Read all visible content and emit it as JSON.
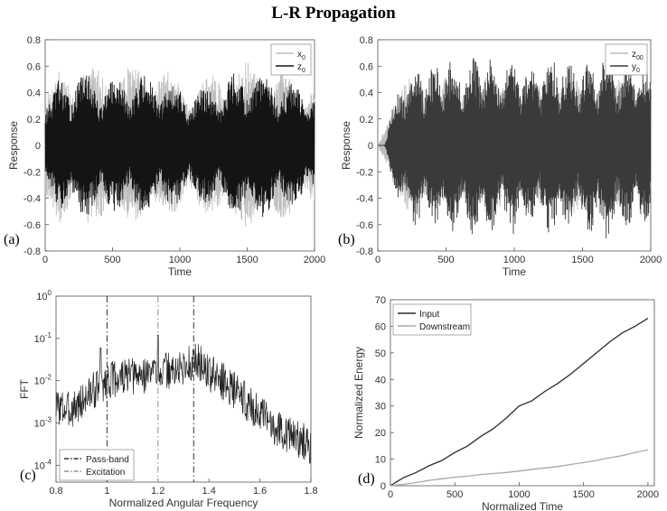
{
  "figure": {
    "title": "L-R Propagation",
    "panel_labels": [
      "(a)",
      "(b)",
      "(c)",
      "(d)"
    ]
  },
  "chart_data": [
    {
      "type": "line",
      "panel": "(a)",
      "xlabel": "Time",
      "ylabel": "Response",
      "xlim": [
        0,
        2000
      ],
      "ylim": [
        -0.8,
        0.8
      ],
      "xticks": [
        0,
        500,
        1000,
        1500,
        2000
      ],
      "yticks": [
        -0.8,
        -0.6,
        -0.4,
        -0.2,
        0,
        0.2,
        0.4,
        0.6,
        0.8
      ],
      "legend_position": "top-right",
      "series": [
        {
          "name": "x0",
          "legend_label": "x",
          "legend_sub": "0",
          "color": "#bdbdbd",
          "envelope_x": [
            50,
            100,
            200,
            300,
            400,
            500,
            600,
            700,
            800,
            900,
            1000,
            1100,
            1200,
            1300,
            1400,
            1500,
            1600,
            1700,
            1800,
            1900,
            2000
          ],
          "envelope_y": [
            0.45,
            0.6,
            0.62,
            0.62,
            0.6,
            0.58,
            0.6,
            0.62,
            0.6,
            0.58,
            0.52,
            0.5,
            0.52,
            0.58,
            0.62,
            0.63,
            0.62,
            0.58,
            0.55,
            0.52,
            0.5
          ]
        },
        {
          "name": "z0",
          "legend_label": "z",
          "legend_sub": "0",
          "color": "#141414",
          "envelope_x": [
            50,
            100,
            200,
            300,
            400,
            500,
            600,
            700,
            800,
            900,
            1000,
            1100,
            1200,
            1300,
            1400,
            1500,
            1600,
            1700,
            1800,
            1900,
            2000
          ],
          "envelope_y": [
            0.35,
            0.52,
            0.55,
            0.55,
            0.52,
            0.5,
            0.52,
            0.55,
            0.52,
            0.5,
            0.45,
            0.42,
            0.45,
            0.5,
            0.55,
            0.56,
            0.55,
            0.52,
            0.48,
            0.45,
            0.42
          ]
        }
      ]
    },
    {
      "type": "line",
      "panel": "(b)",
      "xlabel": "Time",
      "ylabel": "Response",
      "xlim": [
        0,
        2000
      ],
      "ylim": [
        -0.8,
        0.8
      ],
      "xticks": [
        0,
        500,
        1000,
        1500,
        2000
      ],
      "yticks": [
        -0.8,
        -0.6,
        -0.4,
        -0.2,
        0,
        0.2,
        0.4,
        0.6,
        0.8
      ],
      "legend_position": "top-right",
      "series": [
        {
          "name": "z00",
          "legend_label": "z",
          "legend_sub": "00",
          "color": "#bdbdbd",
          "envelope_x": [
            0,
            50,
            100,
            200,
            300,
            400,
            500,
            600,
            700,
            800,
            900,
            1000,
            1100,
            1200,
            1300,
            1400,
            1500,
            1600,
            1700,
            1800,
            1900,
            2000
          ],
          "envelope_y": [
            0.0,
            0.15,
            0.45,
            0.5,
            0.52,
            0.5,
            0.55,
            0.5,
            0.52,
            0.55,
            0.5,
            0.52,
            0.48,
            0.52,
            0.55,
            0.52,
            0.5,
            0.55,
            0.52,
            0.5,
            0.52,
            0.5
          ]
        },
        {
          "name": "y0",
          "legend_label": "y",
          "legend_sub": "0",
          "color": "#3a3a3a",
          "envelope_x": [
            0,
            50,
            100,
            200,
            300,
            400,
            500,
            600,
            700,
            800,
            900,
            1000,
            1100,
            1200,
            1300,
            1400,
            1500,
            1600,
            1700,
            1800,
            1900,
            2000
          ],
          "envelope_y": [
            0.0,
            0.0,
            0.3,
            0.55,
            0.65,
            0.6,
            0.7,
            0.62,
            0.68,
            0.72,
            0.6,
            0.7,
            0.58,
            0.65,
            0.72,
            0.62,
            0.66,
            0.72,
            0.75,
            0.6,
            0.65,
            0.55
          ]
        }
      ]
    },
    {
      "type": "line",
      "panel": "(c)",
      "xlabel": "Normalized Angular Frequency",
      "ylabel": "FFT",
      "yscale": "log",
      "xlim": [
        0.8,
        1.8
      ],
      "ylim": [
        4e-05,
        1
      ],
      "xticks": [
        0.8,
        1,
        1.2,
        1.4,
        1.6,
        1.8
      ],
      "ytick_labels": [
        {
          "value": 1,
          "base": "10",
          "exp": "0"
        },
        {
          "value": 0.1,
          "base": "10",
          "exp": "-1"
        },
        {
          "value": 0.01,
          "base": "10",
          "exp": "-2"
        },
        {
          "value": 0.001,
          "base": "10",
          "exp": "-3"
        },
        {
          "value": 0.0001,
          "base": "10",
          "exp": "-4"
        }
      ],
      "legend_position": "bottom-left",
      "series": [
        {
          "name": "spectrum",
          "color": "#202020",
          "x": [
            0.8,
            0.85,
            0.9,
            0.95,
            1.0,
            1.05,
            1.1,
            1.15,
            1.2,
            1.25,
            1.3,
            1.35,
            1.4,
            1.45,
            1.5,
            1.55,
            1.6,
            1.65,
            1.7,
            1.75,
            1.8
          ],
          "y": [
            0.0025,
            0.002,
            0.003,
            0.006,
            0.01,
            0.012,
            0.012,
            0.014,
            0.018,
            0.016,
            0.02,
            0.03,
            0.015,
            0.01,
            0.006,
            0.003,
            0.0015,
            0.0009,
            0.0006,
            0.0004,
            0.0003
          ]
        }
      ],
      "vlines": [
        {
          "name": "Pass-band",
          "x": [
            1.0,
            1.34
          ],
          "style": "dash-dot",
          "color": "#303030"
        },
        {
          "name": "Excitation",
          "x": [
            1.2
          ],
          "style": "dash-dot",
          "color": "#909090"
        }
      ],
      "spikes": [
        {
          "x": 1.2,
          "y": 0.12
        },
        {
          "x": 0.975,
          "y": 0.06
        },
        {
          "x": 1.34,
          "y": 0.05
        }
      ]
    },
    {
      "type": "line",
      "panel": "(d)",
      "xlabel": "Normalized Time",
      "ylabel": "Normalized Energy",
      "xlim": [
        0,
        2050
      ],
      "ylim": [
        0,
        70
      ],
      "xticks": [
        0,
        500,
        1000,
        1500,
        2000
      ],
      "yticks": [
        0,
        10,
        20,
        30,
        40,
        50,
        60,
        70
      ],
      "legend_position": "top-left",
      "series": [
        {
          "name": "Input",
          "color": "#2a2a2a",
          "x": [
            0,
            50,
            100,
            200,
            300,
            400,
            500,
            600,
            700,
            800,
            900,
            1000,
            1100,
            1200,
            1300,
            1400,
            1500,
            1600,
            1700,
            1800,
            1900,
            2000
          ],
          "y": [
            0,
            1.5,
            3,
            5,
            7.5,
            9.5,
            12.5,
            15,
            18.5,
            21.5,
            25.5,
            30,
            32,
            35.5,
            38.5,
            42,
            46,
            50,
            54,
            57.5,
            60,
            63
          ]
        },
        {
          "name": "Downstream",
          "color": "#a8a8a8",
          "x": [
            0,
            100,
            200,
            300,
            400,
            500,
            600,
            700,
            800,
            900,
            1000,
            1100,
            1200,
            1300,
            1400,
            1500,
            1600,
            1700,
            1800,
            1900,
            2000
          ],
          "y": [
            0,
            0.5,
            1.2,
            2,
            2.6,
            3.2,
            3.6,
            4.2,
            4.6,
            5,
            5.5,
            6.2,
            6.7,
            7.2,
            8,
            8.7,
            9.5,
            10.5,
            11.3,
            12.5,
            13.5
          ]
        }
      ]
    }
  ]
}
